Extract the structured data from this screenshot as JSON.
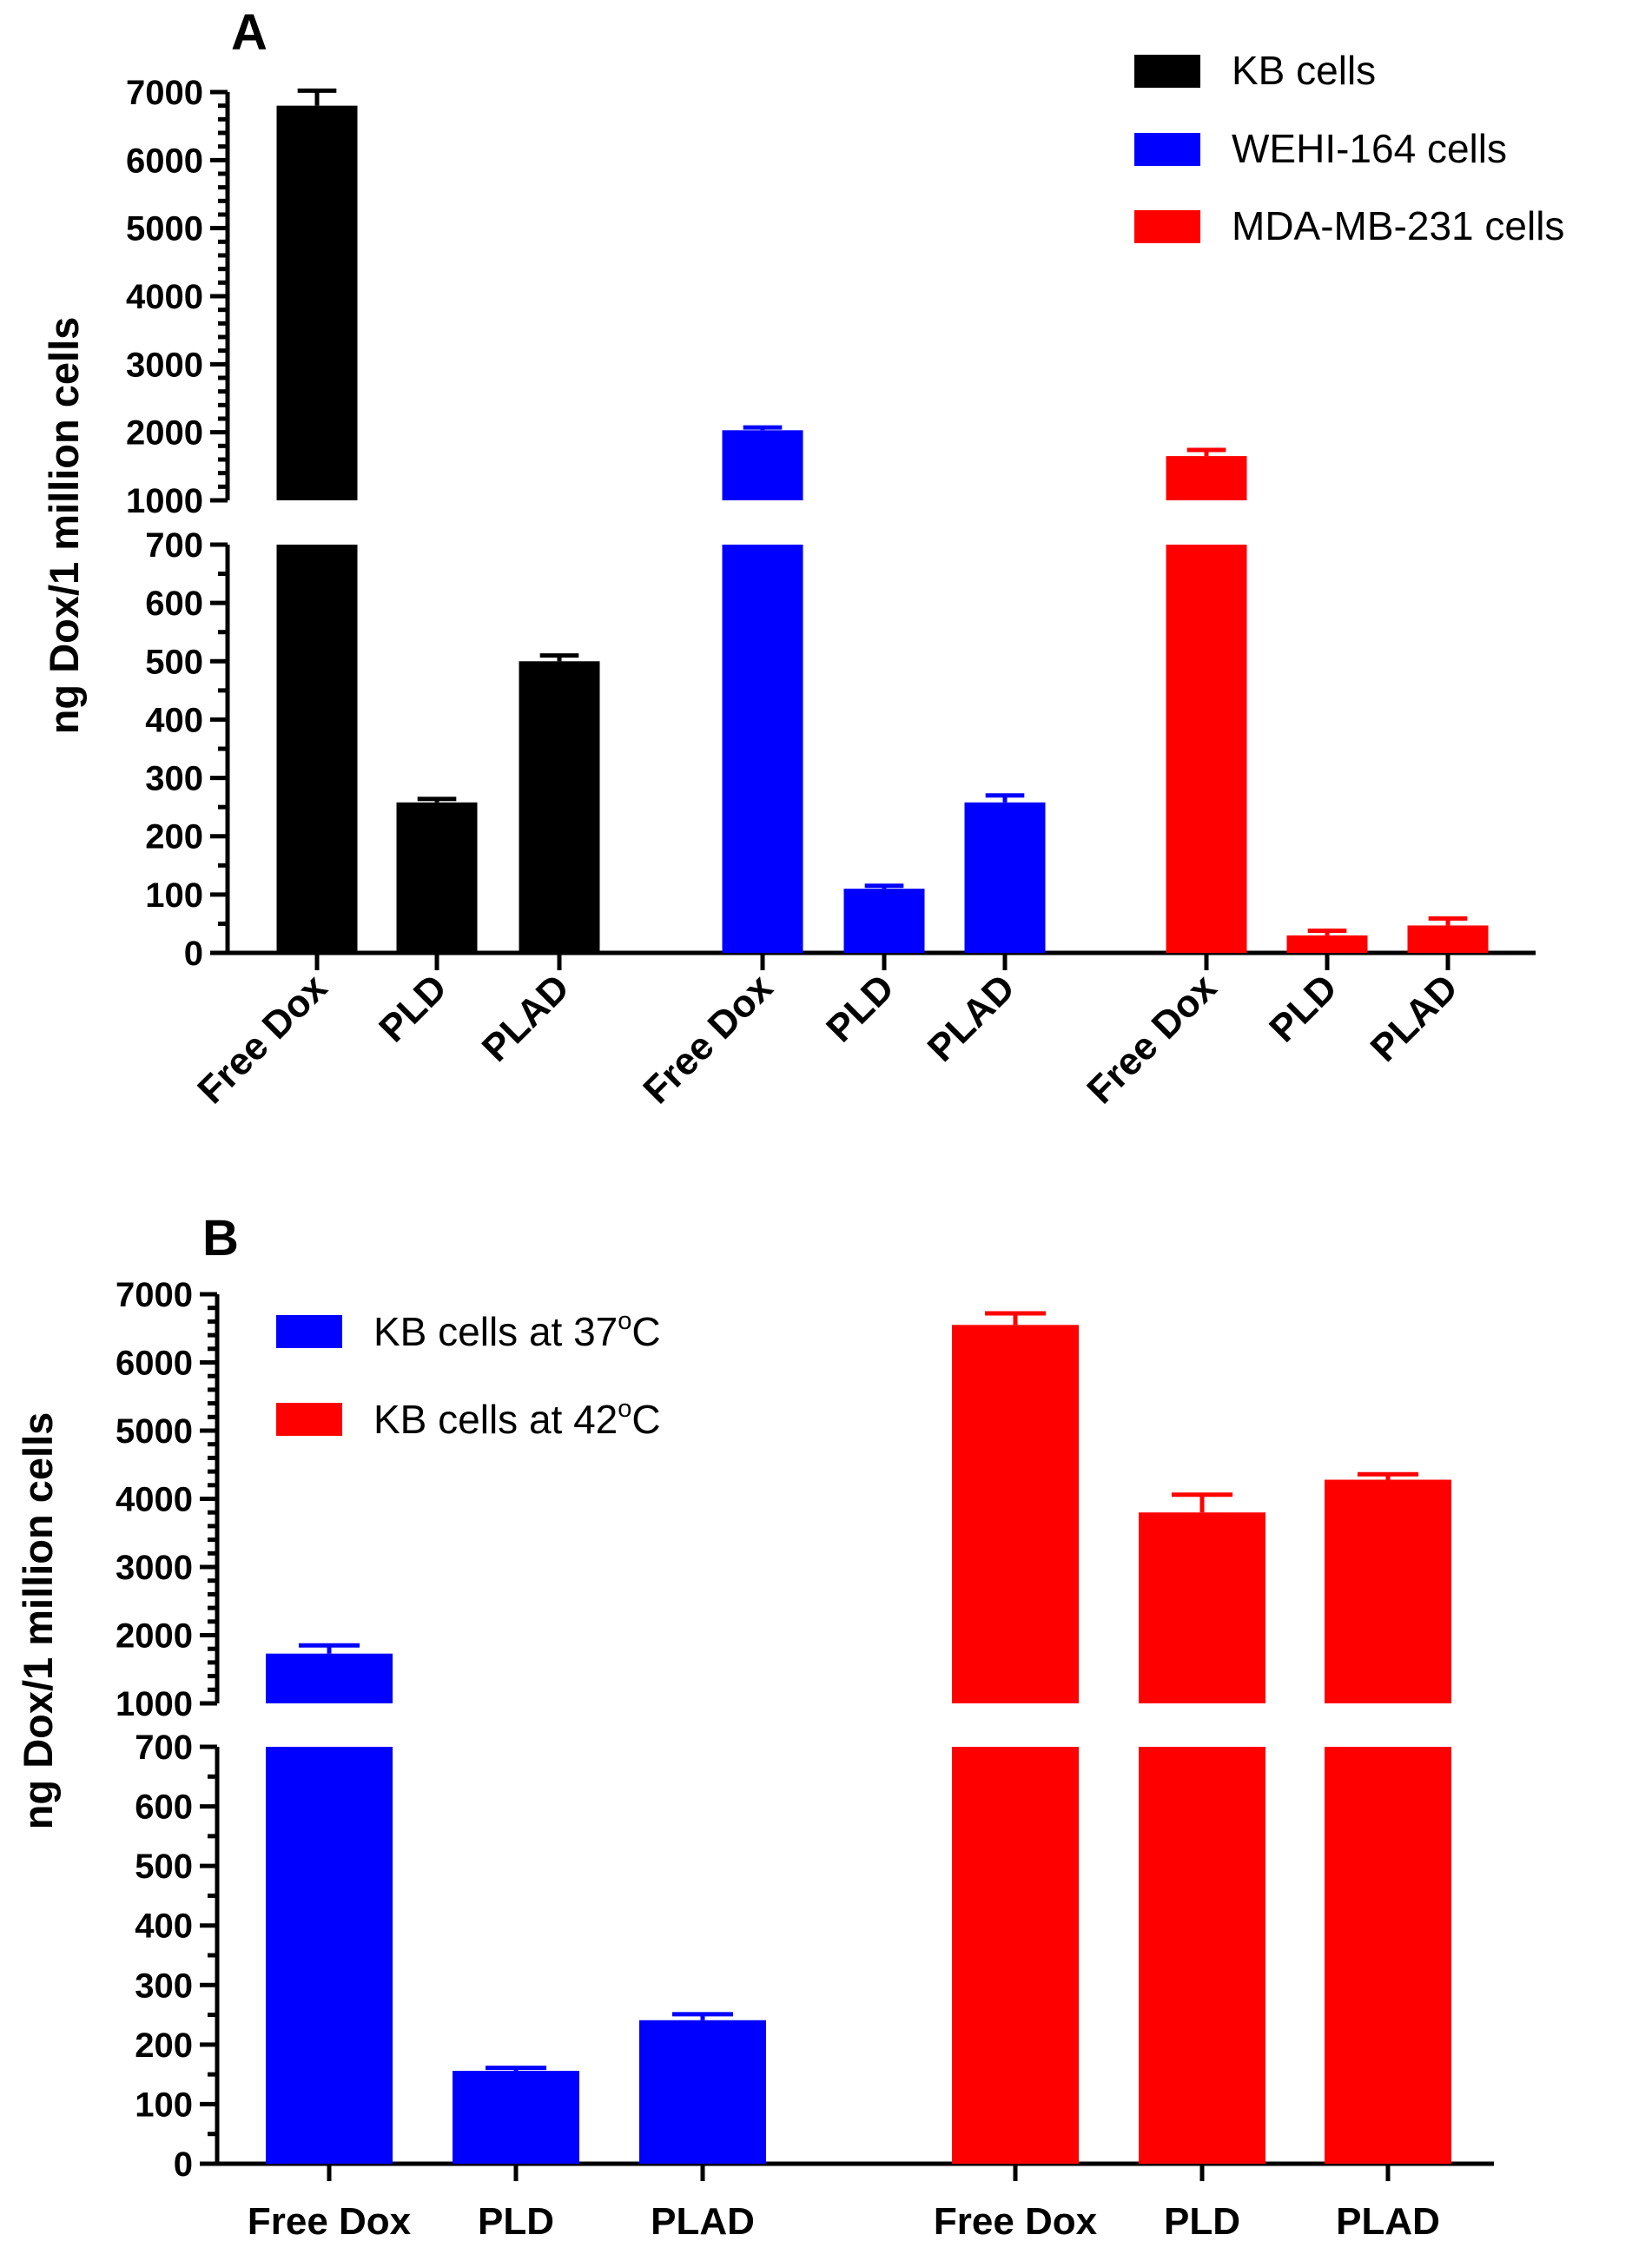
{
  "colors": {
    "black": "#000000",
    "blue": "#0000ff",
    "red": "#ff0000"
  },
  "chart_data": [
    {
      "panel": "A",
      "type": "bar",
      "ylabel": "ng Dox/1 million cells",
      "y_axis_break": {
        "lower_segment": [
          0,
          700
        ],
        "upper_segment": [
          1000,
          7000
        ]
      },
      "yticks_lower": [
        "0",
        "100",
        "200",
        "300",
        "400",
        "500",
        "600",
        "700"
      ],
      "yticks_upper": [
        "1000",
        "2000",
        "3000",
        "4000",
        "5000",
        "6000",
        "7000"
      ],
      "legend_placement": "top-right",
      "legend": [
        {
          "label": "KB cells",
          "color": "#000000"
        },
        {
          "label": "WEHI-164 cells",
          "color": "#0000ff"
        },
        {
          "label": "MDA-MB-231 cells",
          "color": "#ff0000"
        }
      ],
      "bars": [
        {
          "category": "Free Dox",
          "series": "KB cells",
          "value": 6800,
          "error": 220,
          "color": "#000000"
        },
        {
          "category": "PLD",
          "series": "KB cells",
          "value": 258,
          "error": 6,
          "color": "#000000"
        },
        {
          "category": "PLAD",
          "series": "KB cells",
          "value": 500,
          "error": 10,
          "color": "#000000"
        },
        {
          "category": "Free Dox",
          "series": "WEHI-164 cells",
          "value": 2030,
          "error": 40,
          "color": "#0000ff"
        },
        {
          "category": "PLD",
          "series": "WEHI-164 cells",
          "value": 110,
          "error": 5,
          "color": "#0000ff"
        },
        {
          "category": "PLAD",
          "series": "WEHI-164 cells",
          "value": 258,
          "error": 12,
          "color": "#0000ff"
        },
        {
          "category": "Free Dox",
          "series": "MDA-MB-231 cells",
          "value": 1650,
          "error": 90,
          "color": "#ff0000"
        },
        {
          "category": "PLD",
          "series": "MDA-MB-231 cells",
          "value": 30,
          "error": 8,
          "color": "#ff0000"
        },
        {
          "category": "PLAD",
          "series": "MDA-MB-231 cells",
          "value": 47,
          "error": 12,
          "color": "#ff0000"
        }
      ]
    },
    {
      "panel": "B",
      "type": "bar",
      "ylabel": "ng Dox/1 million cells",
      "y_axis_break": {
        "lower_segment": [
          0,
          700
        ],
        "upper_segment": [
          1000,
          7000
        ]
      },
      "yticks_lower": [
        "0",
        "100",
        "200",
        "300",
        "400",
        "500",
        "600",
        "700"
      ],
      "yticks_upper": [
        "1000",
        "2000",
        "3000",
        "4000",
        "5000",
        "6000",
        "7000"
      ],
      "legend_placement": "top-left",
      "legend": [
        {
          "label_main": "KB cells at 37",
          "label_sup": "o",
          "label_end": "C",
          "color": "#0000ff"
        },
        {
          "label_main": "KB cells at 42",
          "label_sup": "o",
          "label_end": "C",
          "color": "#ff0000"
        }
      ],
      "bars": [
        {
          "category": "Free Dox",
          "series": "KB cells at 37oC",
          "value": 1730,
          "error": 120,
          "color": "#0000ff"
        },
        {
          "category": "PLD",
          "series": "KB cells at 37oC",
          "value": 156,
          "error": 5,
          "color": "#0000ff"
        },
        {
          "category": "PLAD",
          "series": "KB cells at 37oC",
          "value": 241,
          "error": 10,
          "color": "#0000ff"
        },
        {
          "category": "Free Dox",
          "series": "KB cells at 42oC",
          "value": 6550,
          "error": 170,
          "color": "#ff0000"
        },
        {
          "category": "PLD",
          "series": "KB cells at 42oC",
          "value": 3800,
          "error": 260,
          "color": "#ff0000"
        },
        {
          "category": "PLAD",
          "series": "KB cells at 42oC",
          "value": 4280,
          "error": 80,
          "color": "#ff0000"
        }
      ]
    }
  ]
}
